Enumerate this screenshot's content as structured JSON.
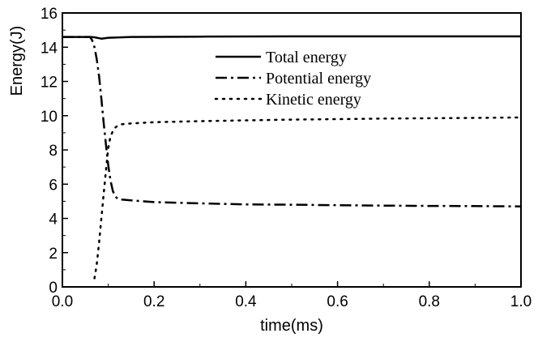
{
  "chart_data": {
    "type": "line",
    "xlabel": "time(ms)",
    "ylabel": "Energy(J)",
    "xlim": [
      0.0,
      1.0
    ],
    "ylim": [
      0,
      16
    ],
    "xticks": [
      0.0,
      0.2,
      0.4,
      0.6,
      0.8,
      1.0
    ],
    "xtick_labels": [
      "0.0",
      "0.2",
      "0.4",
      "0.6",
      "0.8",
      "1.0"
    ],
    "yticks": [
      0,
      2,
      4,
      6,
      8,
      10,
      12,
      14,
      16
    ],
    "ytick_labels": [
      "0",
      "2",
      "4",
      "6",
      "8",
      "10",
      "12",
      "14",
      "16"
    ],
    "grid": false,
    "legend_position": "top-right",
    "series": [
      {
        "name": "Total energy",
        "style": "solid",
        "color": "#000000",
        "x": [
          0.0,
          0.06,
          0.07,
          0.085,
          0.1,
          0.15,
          0.3,
          0.5,
          0.7,
          1.0
        ],
        "y": [
          14.6,
          14.6,
          14.58,
          14.5,
          14.55,
          14.6,
          14.62,
          14.63,
          14.63,
          14.63
        ]
      },
      {
        "name": "Potential energy",
        "style": "dashdot",
        "color": "#000000",
        "x": [
          0.0,
          0.06,
          0.065,
          0.07,
          0.075,
          0.08,
          0.085,
          0.09,
          0.095,
          0.1,
          0.105,
          0.11,
          0.115,
          0.12,
          0.13,
          0.15,
          0.2,
          0.3,
          0.4,
          0.5,
          0.6,
          0.7,
          0.8,
          0.9,
          1.0
        ],
        "y": [
          14.6,
          14.6,
          14.4,
          14.0,
          13.3,
          12.3,
          11.0,
          9.6,
          8.3,
          7.1,
          6.2,
          5.6,
          5.3,
          5.15,
          5.1,
          5.05,
          4.95,
          4.88,
          4.82,
          4.8,
          4.77,
          4.75,
          4.73,
          4.72,
          4.7
        ]
      },
      {
        "name": "Kinetic energy",
        "style": "dotted",
        "color": "#000000",
        "x": [
          0.07,
          0.075,
          0.08,
          0.085,
          0.09,
          0.095,
          0.1,
          0.105,
          0.11,
          0.115,
          0.12,
          0.13,
          0.15,
          0.2,
          0.3,
          0.4,
          0.5,
          0.6,
          0.7,
          0.8,
          0.9,
          1.0
        ],
        "y": [
          0.5,
          1.3,
          2.6,
          4.0,
          5.4,
          6.8,
          8.1,
          8.8,
          9.1,
          9.3,
          9.4,
          9.5,
          9.55,
          9.62,
          9.68,
          9.73,
          9.77,
          9.8,
          9.83,
          9.85,
          9.87,
          9.9
        ]
      }
    ]
  }
}
